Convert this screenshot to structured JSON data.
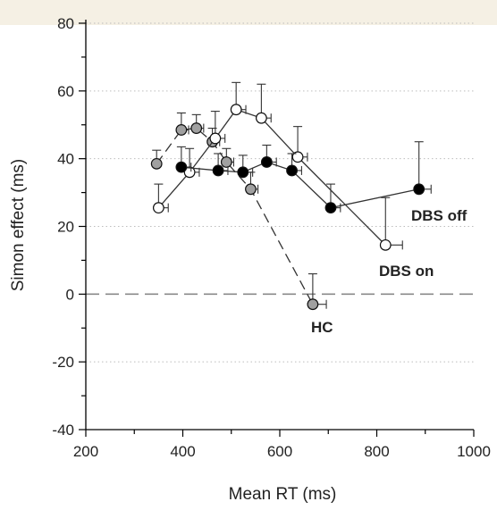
{
  "chart_data": {
    "type": "scatter",
    "title": "",
    "xlabel": "Mean RT (ms)",
    "ylabel": "Simon effect (ms)",
    "xlim": [
      200,
      1000
    ],
    "ylim": [
      -40,
      80
    ],
    "x_ticks": [
      200,
      400,
      600,
      800,
      1000
    ],
    "y_ticks": [
      -40,
      -20,
      0,
      20,
      40,
      60,
      80
    ],
    "grid": "horizontal dotted at y ticks",
    "reference_line": {
      "y": 0,
      "style": "dashed"
    },
    "background_band_color": "#f5f0e4",
    "series": [
      {
        "name": "DBS off",
        "label": "DBS off",
        "marker_fill": "#000000",
        "line_style": "solid",
        "points": [
          {
            "x": 397,
            "y": 37.5,
            "x_err": 20,
            "y_err": 6
          },
          {
            "x": 473,
            "y": 36.5,
            "x_err": 20,
            "y_err": 5
          },
          {
            "x": 524,
            "y": 36.0,
            "x_err": 20,
            "y_err": 5
          },
          {
            "x": 573,
            "y": 39.0,
            "x_err": 20,
            "y_err": 5
          },
          {
            "x": 625,
            "y": 36.5,
            "x_err": 20,
            "y_err": 5
          },
          {
            "x": 705,
            "y": 25.5,
            "x_err": 20,
            "y_err": 7
          },
          {
            "x": 887,
            "y": 31.0,
            "x_err": 25,
            "y_err": 14
          }
        ]
      },
      {
        "name": "DBS on",
        "label": "DBS on",
        "marker_fill": "#ffffff",
        "line_style": "solid",
        "points": [
          {
            "x": 350,
            "y": 25.5,
            "x_err": 20,
            "y_err": 7
          },
          {
            "x": 414,
            "y": 36.0,
            "x_err": 20,
            "y_err": 7
          },
          {
            "x": 467,
            "y": 46.0,
            "x_err": 20,
            "y_err": 8
          },
          {
            "x": 510,
            "y": 54.5,
            "x_err": 20,
            "y_err": 8
          },
          {
            "x": 562,
            "y": 52.0,
            "x_err": 20,
            "y_err": 10
          },
          {
            "x": 637,
            "y": 40.5,
            "x_err": 20,
            "y_err": 9
          },
          {
            "x": 818,
            "y": 14.5,
            "x_err": 35,
            "y_err": 14
          }
        ]
      },
      {
        "name": "HC",
        "label": "HC",
        "marker_fill": "#a0a0a0",
        "line_style": "dashed",
        "points": [
          {
            "x": 346,
            "y": 38.5,
            "x_err": 0,
            "y_err": 4
          },
          {
            "x": 397,
            "y": 48.5,
            "x_err": 15,
            "y_err": 5
          },
          {
            "x": 428,
            "y": 49.0,
            "x_err": 15,
            "y_err": 4
          },
          {
            "x": 461,
            "y": 45.0,
            "x_err": 15,
            "y_err": 4
          },
          {
            "x": 490,
            "y": 39.0,
            "x_err": 15,
            "y_err": 4
          },
          {
            "x": 540,
            "y": 31.0,
            "x_err": 15,
            "y_err": 5
          },
          {
            "x": 668,
            "y": -3.0,
            "x_err": 28,
            "y_err": 9
          }
        ]
      }
    ]
  }
}
